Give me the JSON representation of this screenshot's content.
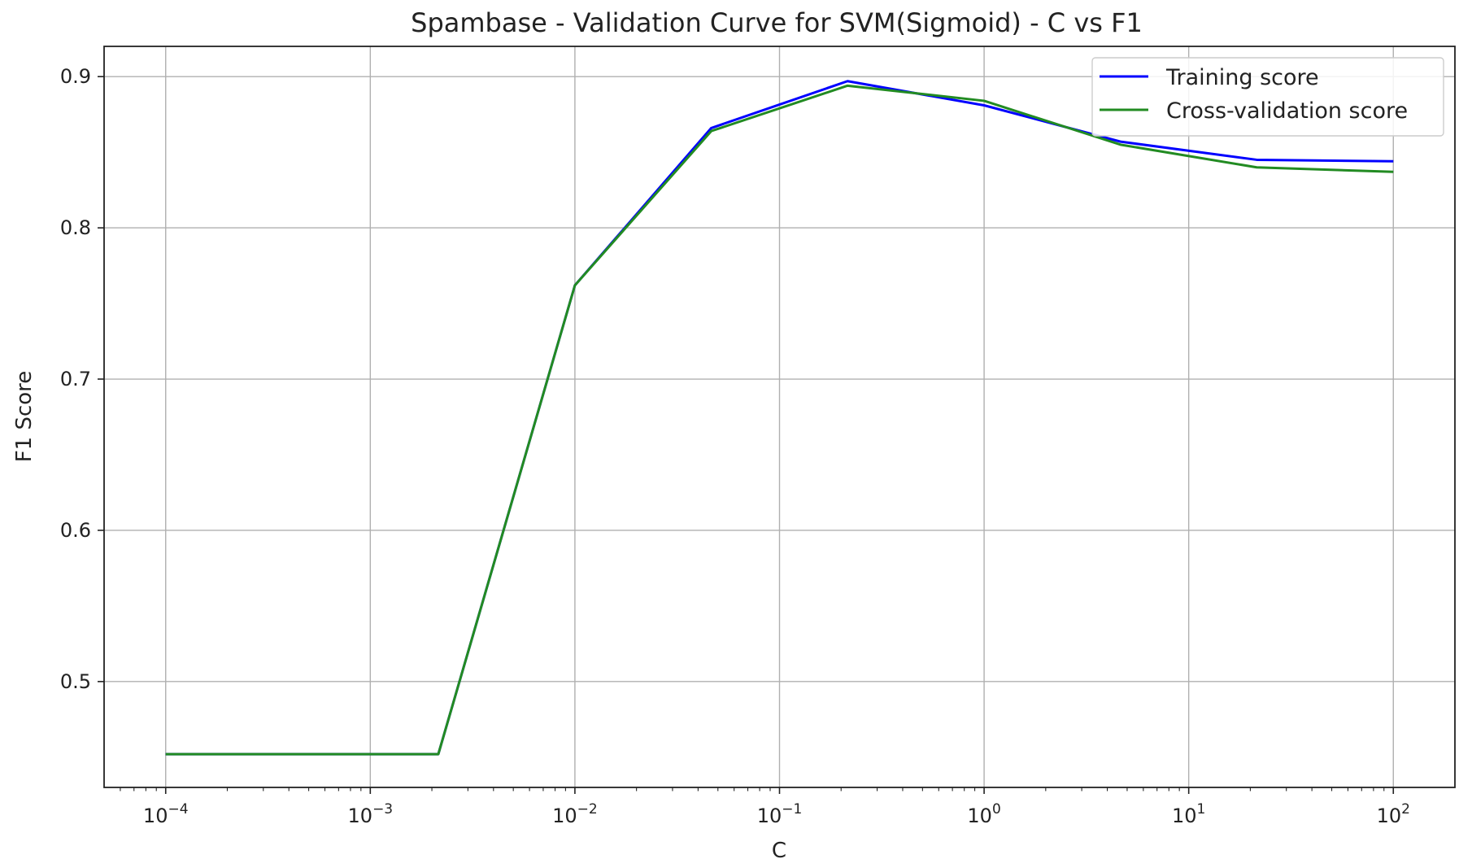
{
  "chart_data": {
    "type": "line",
    "title": "Spambase - Validation Curve for SVM(Sigmoid) - C vs F1",
    "xlabel": "C",
    "ylabel": "F1 Score",
    "x_scale": "log",
    "xlim": [
      5e-05,
      200
    ],
    "ylim": [
      0.43,
      0.92
    ],
    "x_ticks": [
      0.0001,
      0.001,
      0.01,
      0.1,
      1,
      10,
      100
    ],
    "x_tick_labels": [
      {
        "base": "10",
        "exp": "−4"
      },
      {
        "base": "10",
        "exp": "−3"
      },
      {
        "base": "10",
        "exp": "−2"
      },
      {
        "base": "10",
        "exp": "−1"
      },
      {
        "base": "10",
        "exp": "0"
      },
      {
        "base": "10",
        "exp": "1"
      },
      {
        "base": "10",
        "exp": "2"
      }
    ],
    "y_ticks": [
      0.5,
      0.6,
      0.7,
      0.8,
      0.9
    ],
    "y_tick_labels": [
      "0.5",
      "0.6",
      "0.7",
      "0.8",
      "0.9"
    ],
    "grid": true,
    "legend_position": "top-right",
    "x": [
      0.0001,
      0.000464,
      0.00215,
      0.01,
      0.0464,
      0.215,
      1,
      4.64,
      21.5,
      100
    ],
    "series": [
      {
        "name": "Training score",
        "color": "#0000ff",
        "values": [
          0.452,
          0.452,
          0.452,
          0.762,
          0.866,
          0.897,
          0.881,
          0.857,
          0.845,
          0.844
        ]
      },
      {
        "name": "Cross-validation score",
        "color": "#228b22",
        "values": [
          0.452,
          0.452,
          0.452,
          0.762,
          0.864,
          0.894,
          0.884,
          0.855,
          0.84,
          0.837
        ]
      }
    ]
  }
}
